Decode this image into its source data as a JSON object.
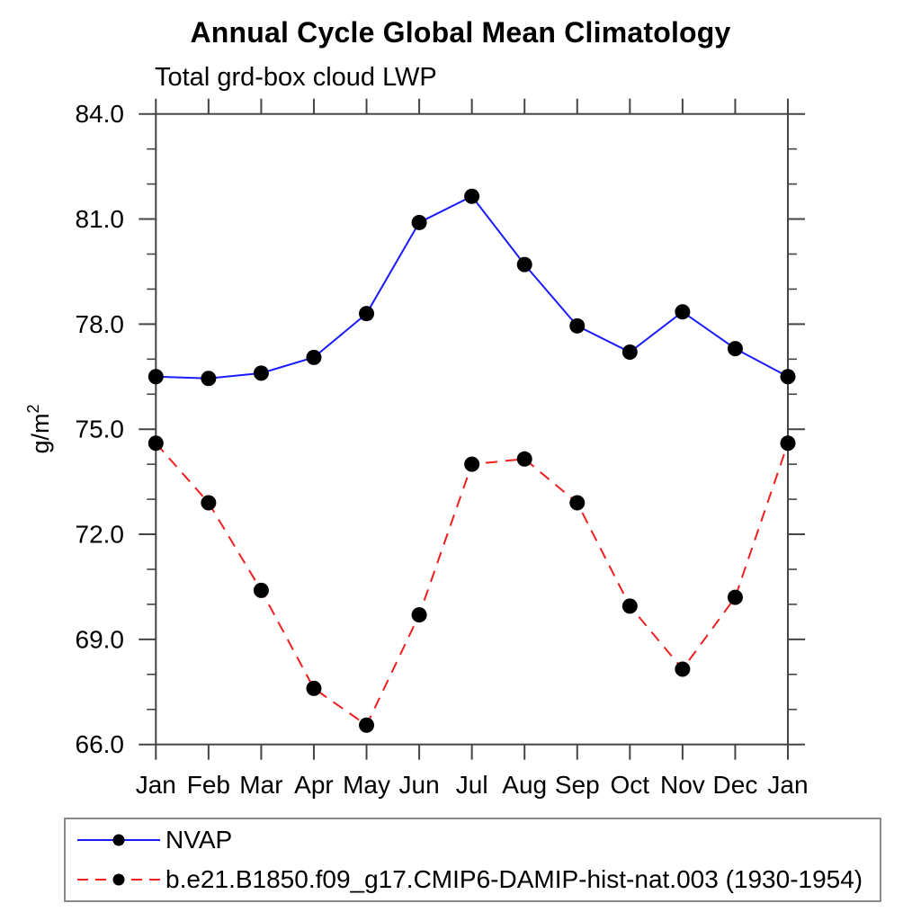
{
  "page": {
    "background": "#ffffff"
  },
  "chart_data": {
    "type": "line",
    "title": "Annual Cycle Global Mean Climatology",
    "subtitle": "Total grd-box cloud LWP",
    "ylabel": "g/m²",
    "x_tick_labels": [
      "Jan",
      "Feb",
      "Mar",
      "Apr",
      "May",
      "Jun",
      "Jul",
      "Aug",
      "Sep",
      "Oct",
      "Nov",
      "Dec",
      "Jan"
    ],
    "ylim": [
      66.0,
      84.0
    ],
    "y_major_ticks": [
      66,
      69,
      72,
      75,
      78,
      81,
      84
    ],
    "y_major_tick_labels": [
      "66.0",
      "69.0",
      "72.0",
      "75.0",
      "78.0",
      "81.0",
      "84.0"
    ],
    "y_minor_tick_step": 1.0,
    "grid": false,
    "legend_position": "framed box below plot, bottom-left",
    "axis_color": "#444444",
    "text_color": "#000000",
    "marker_color": "#000000",
    "series": [
      {
        "name": "NVAP",
        "color": "#1a1aff",
        "line_style": "solid",
        "marker": "filled-black-circle",
        "values": [
          76.5,
          76.45,
          76.6,
          77.05,
          78.3,
          80.9,
          81.65,
          79.7,
          77.95,
          77.2,
          78.35,
          77.3,
          76.5
        ]
      },
      {
        "name": "b.e21.B1850.f09_g17.CMIP6-DAMIP-hist-nat.003 (1930-1954)",
        "color": "#f01e1e",
        "line_style": "dashed",
        "marker": "filled-black-circle",
        "values": [
          74.6,
          72.9,
          70.4,
          67.6,
          66.55,
          69.7,
          74.0,
          74.15,
          72.9,
          69.95,
          68.15,
          70.2,
          74.6
        ]
      }
    ]
  }
}
